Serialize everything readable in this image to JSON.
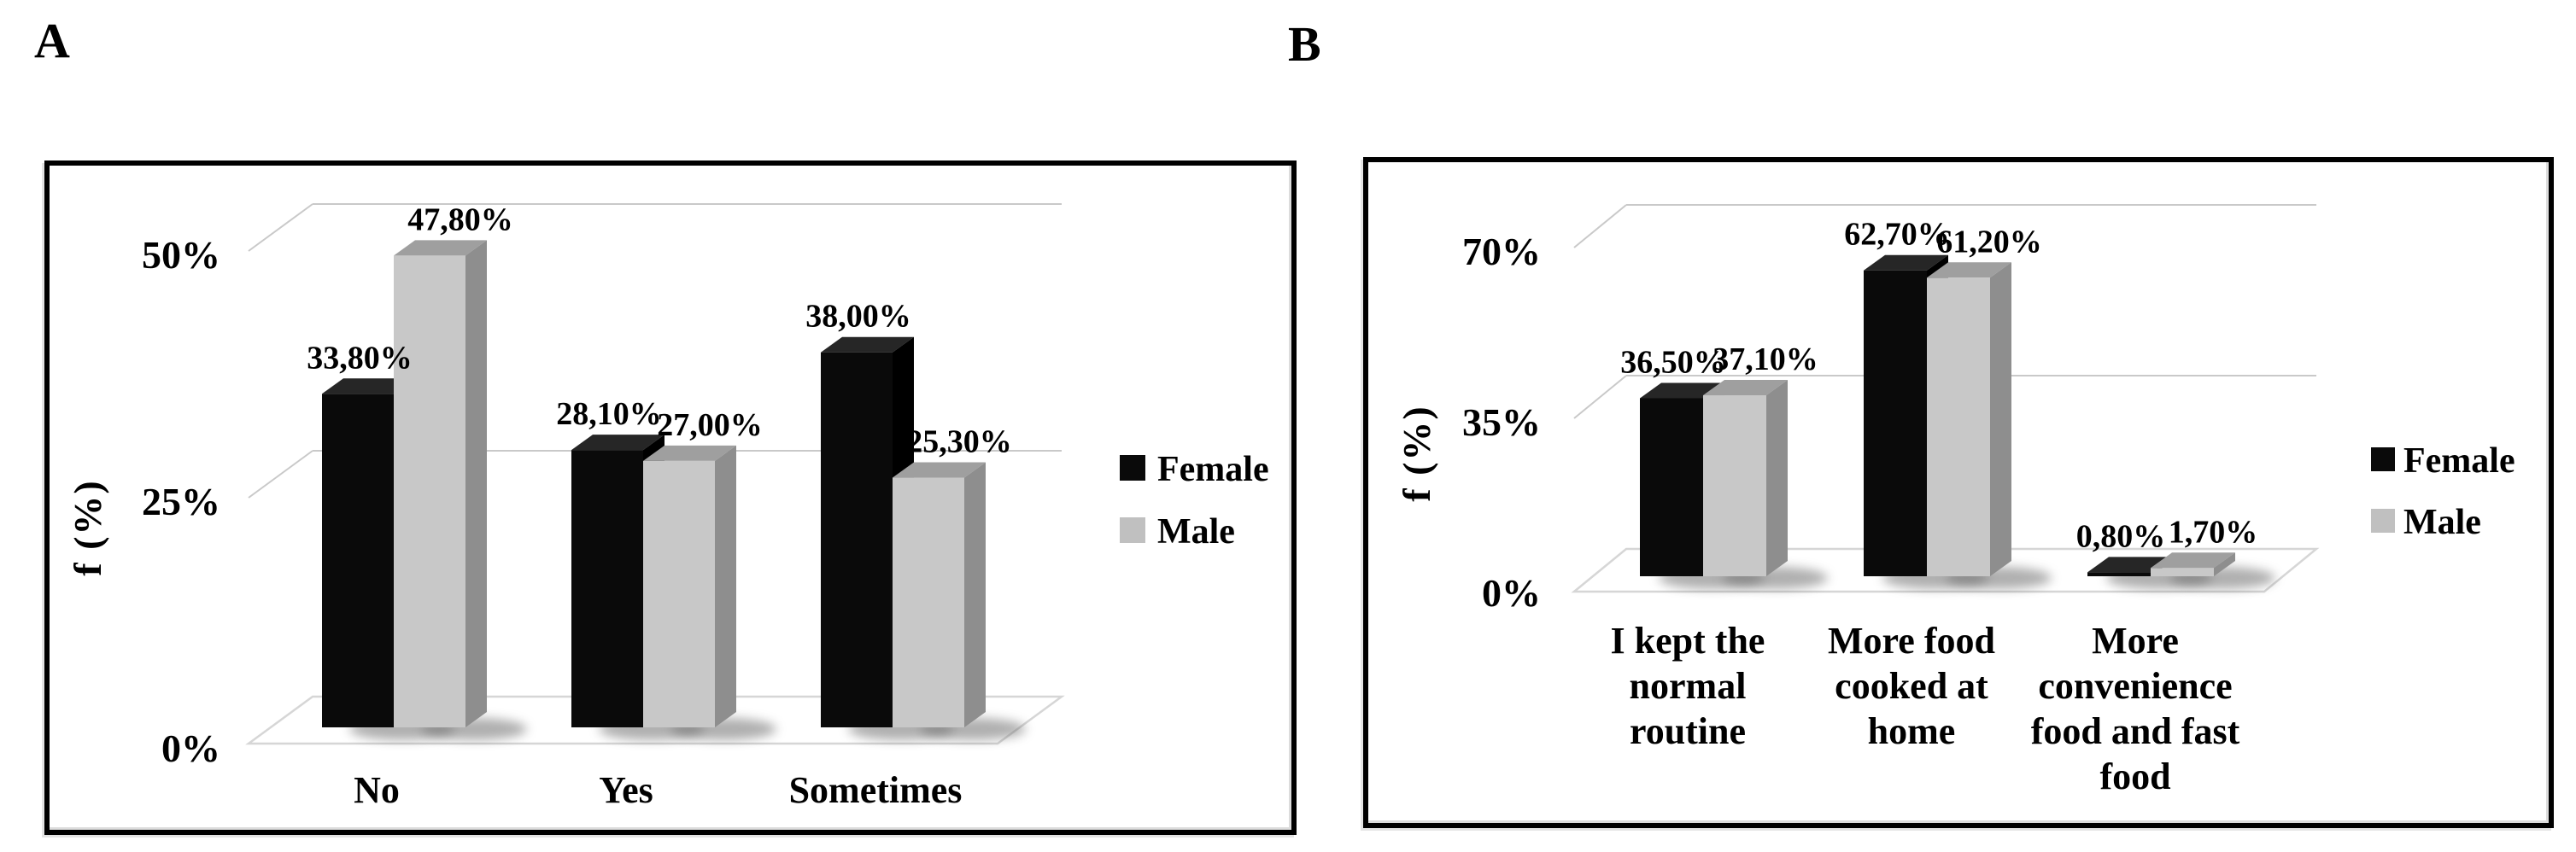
{
  "figure": {
    "panels": [
      {
        "letter": "A"
      },
      {
        "letter": "B"
      }
    ]
  },
  "chart_data": [
    {
      "type": "bar",
      "style": "3d-column",
      "panel": "A",
      "title": "",
      "xlabel": "",
      "ylabel": "f (%)",
      "categories": [
        "No",
        "Yes",
        "Sometimes"
      ],
      "category_lines": [
        [
          "No"
        ],
        [
          "Yes"
        ],
        [
          "Sometimes"
        ]
      ],
      "y_ticks": [
        {
          "value": 0,
          "label": "0%"
        },
        {
          "value": 25,
          "label": "25%"
        },
        {
          "value": 50,
          "label": "50%"
        }
      ],
      "ylim": [
        0,
        50
      ],
      "grid": true,
      "grid_color": "#c9c9c9",
      "floor_color": "#d6d6d6",
      "legend_position": "right",
      "series": [
        {
          "name": "Female",
          "values": [
            33.8,
            28.1,
            38.0
          ],
          "value_labels": [
            "33,80%",
            "28,10%",
            "38,00%"
          ],
          "colors": {
            "front": "#0a0a0a",
            "top": "#262626",
            "side": "#000000",
            "legend": "#0a0a0a"
          }
        },
        {
          "name": "Male",
          "values": [
            47.8,
            27.0,
            25.3
          ],
          "value_labels": [
            "47,80%",
            "27,00%",
            "25,30%"
          ],
          "colors": {
            "front": "#c8c8c8",
            "top": "#9f9f9f",
            "side": "#8e8e8e",
            "legend": "#c0c0c0"
          }
        }
      ]
    },
    {
      "type": "bar",
      "style": "3d-column",
      "panel": "B",
      "title": "",
      "xlabel": "",
      "ylabel": "f (%)",
      "categories": [
        "I kept the normal routine",
        "More food cooked at home",
        "More convenience food and fast food"
      ],
      "category_lines": [
        [
          "I kept the",
          "normal",
          "routine"
        ],
        [
          "More food",
          "cooked at",
          "home"
        ],
        [
          "More",
          "convenience",
          "food and fast",
          "food"
        ]
      ],
      "y_ticks": [
        {
          "value": 0,
          "label": "0%"
        },
        {
          "value": 35,
          "label": "35%"
        },
        {
          "value": 70,
          "label": "70%"
        }
      ],
      "ylim": [
        0,
        70
      ],
      "grid": true,
      "grid_color": "#c9c9c9",
      "floor_color": "#d6d6d6",
      "legend_position": "right",
      "series": [
        {
          "name": "Female",
          "values": [
            36.5,
            62.7,
            0.8
          ],
          "value_labels": [
            "36,50%",
            "62,70%",
            "0,80%"
          ],
          "colors": {
            "front": "#0a0a0a",
            "top": "#262626",
            "side": "#000000",
            "legend": "#0a0a0a"
          }
        },
        {
          "name": "Male",
          "values": [
            37.1,
            61.2,
            1.7
          ],
          "value_labels": [
            "37,10%",
            "61,20%",
            "1,70%"
          ],
          "colors": {
            "front": "#c8c8c8",
            "top": "#9f9f9f",
            "side": "#8e8e8e",
            "legend": "#c0c0c0"
          }
        }
      ]
    }
  ]
}
